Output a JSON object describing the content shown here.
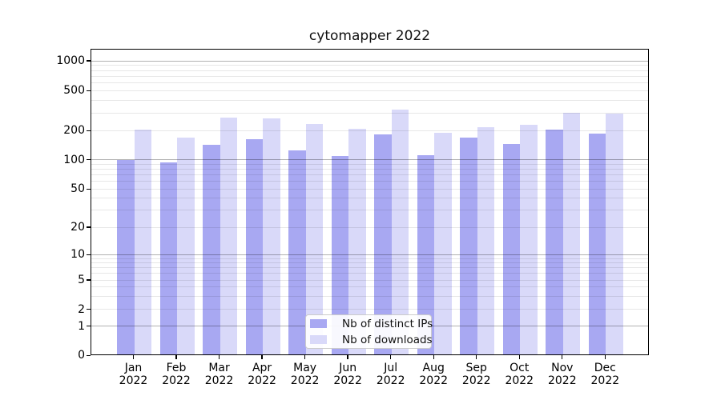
{
  "chart_data": {
    "type": "bar",
    "title": "cytomapper 2022",
    "categories": [
      "Jan",
      "Feb",
      "Mar",
      "Apr",
      "May",
      "Jun",
      "Jul",
      "Aug",
      "Sep",
      "Oct",
      "Nov",
      "Dec"
    ],
    "year_label": "2022",
    "series": [
      {
        "name": "Nb of distinct IPs",
        "color": "#a8a8f2",
        "values": [
          96,
          92,
          138,
          160,
          121,
          107,
          180,
          109,
          165,
          143,
          201,
          183
        ]
      },
      {
        "name": "Nb of downloads",
        "color": "#d9d9f9",
        "values": [
          201,
          165,
          266,
          258,
          229,
          204,
          315,
          184,
          210,
          222,
          294,
          287
        ]
      }
    ],
    "yscale": "symlog",
    "yticks": [
      0,
      1,
      2,
      5,
      10,
      20,
      50,
      100,
      200,
      500,
      1000
    ],
    "ylim": [
      0,
      1500
    ],
    "grid": true,
    "gridline_major_values": [
      1,
      10,
      100,
      1000
    ],
    "legend_position": "lower center inside plot",
    "colors": {
      "distinct_ips": "#a8a8f2",
      "downloads": "#d9d9f9",
      "grid_major": "#b4b4b4",
      "grid_minor": "#e8e8e8",
      "spine": "#000000"
    }
  }
}
